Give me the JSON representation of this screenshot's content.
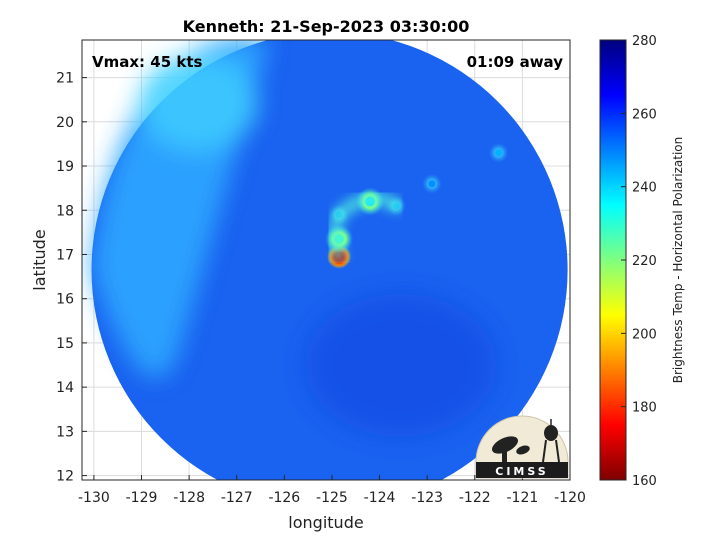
{
  "chart_data": {
    "type": "heatmap",
    "title": "Kenneth: 21-Sep-2023 03:30:00",
    "xlabel": "longitude",
    "ylabel": "latitude",
    "xlim": [
      -130.25,
      -120
    ],
    "ylim": [
      11.9,
      21.85
    ],
    "x_ticks": [
      -130,
      -129,
      -128,
      -127,
      -126,
      -125,
      -124,
      -123,
      -122,
      -121,
      -120
    ],
    "y_ticks": [
      12,
      13,
      14,
      15,
      16,
      17,
      18,
      19,
      20,
      21
    ],
    "grid": true,
    "annotations": {
      "vmax": "Vmax: 45 kts",
      "time_away": "01:09 away"
    },
    "colorbar": {
      "label": "Brightness Temp - Horizontal Polarization",
      "range": [
        160,
        280
      ],
      "ticks": [
        160,
        180,
        200,
        220,
        240,
        260,
        280
      ]
    },
    "swath": {
      "center": [
        -125.05,
        16.65
      ],
      "radius_deg": 5.0
    },
    "features": [
      {
        "lon": -124.85,
        "lat": 16.95,
        "value": 168
      },
      {
        "lon": -124.85,
        "lat": 17.35,
        "value": 228
      },
      {
        "lon": -124.85,
        "lat": 17.9,
        "value": 246
      },
      {
        "lon": -124.2,
        "lat": 18.2,
        "value": 238
      },
      {
        "lon": -123.65,
        "lat": 18.1,
        "value": 244
      },
      {
        "lon": -122.9,
        "lat": 18.6,
        "value": 248
      },
      {
        "lon": -121.5,
        "lat": 19.3,
        "value": 244
      }
    ],
    "colors": {
      "plot_bg": "#ffffff",
      "axis": "#262626",
      "grid": "#dcdcdc"
    }
  },
  "logo": {
    "text": "CIMSS"
  }
}
